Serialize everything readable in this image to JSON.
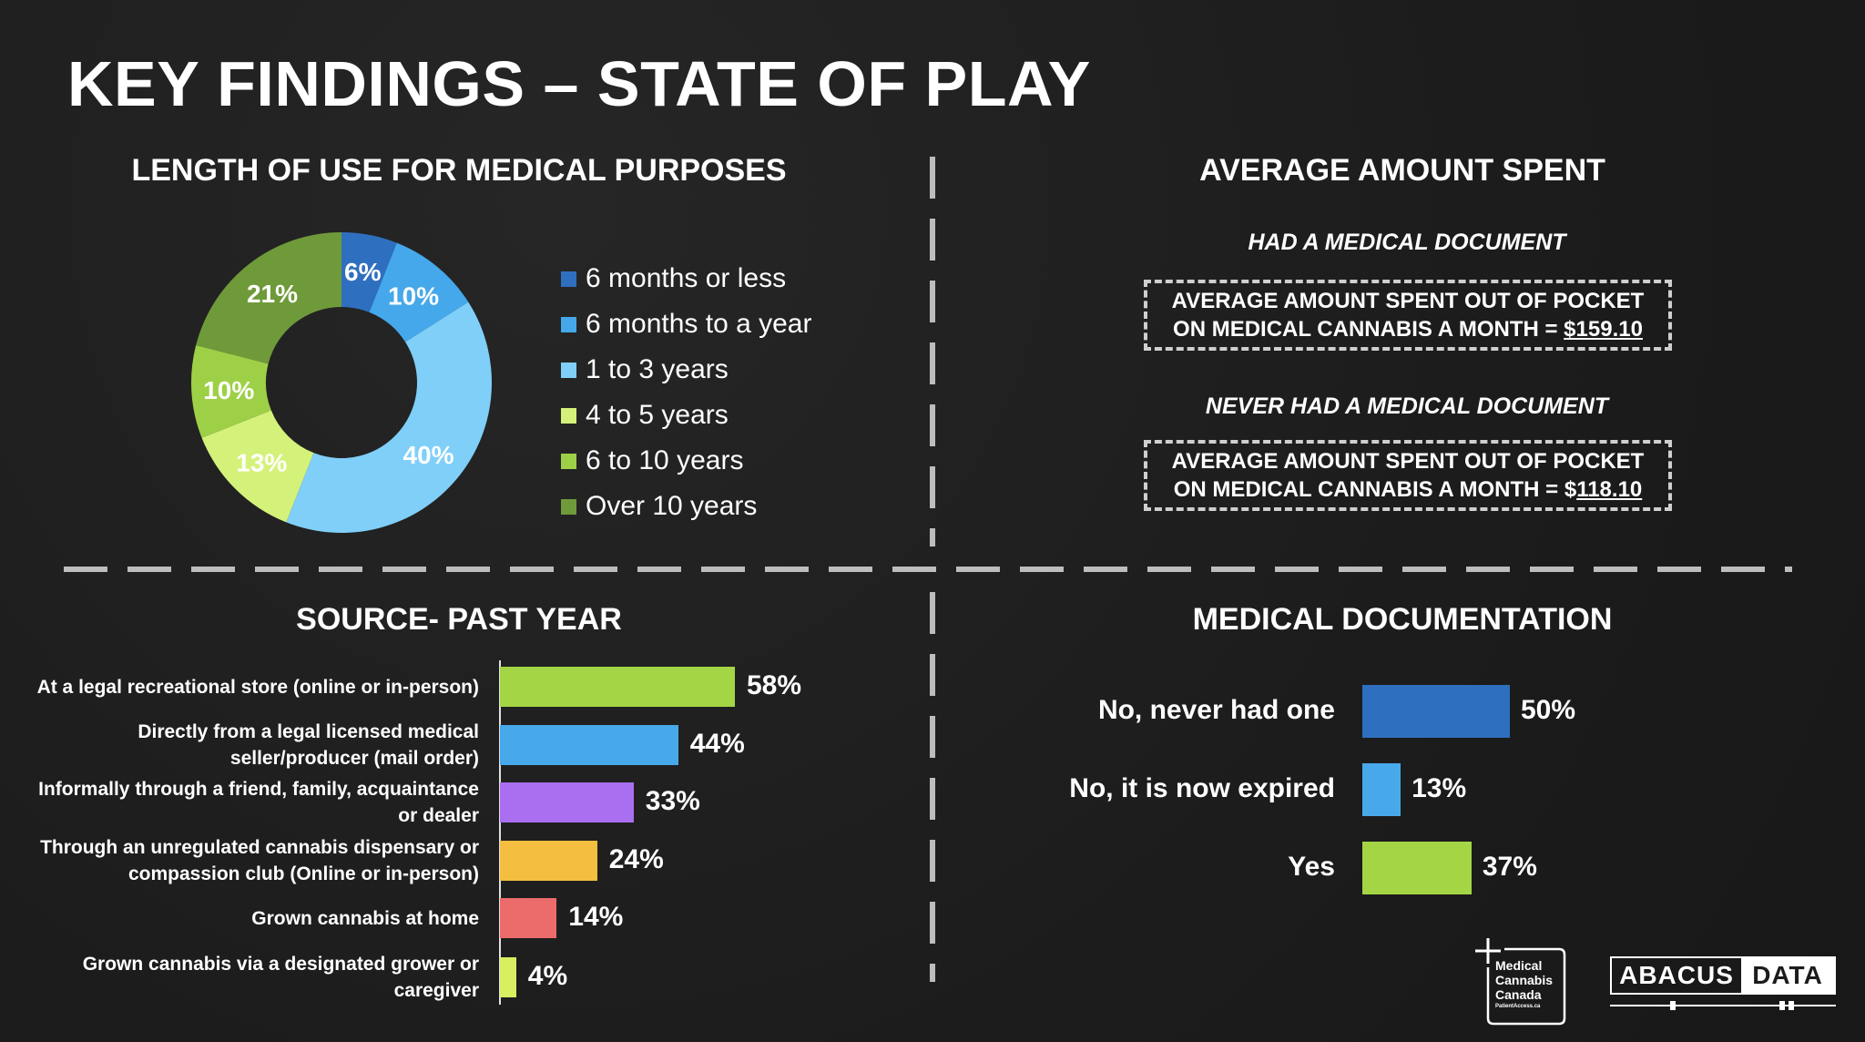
{
  "title": "KEY FINDINGS – STATE OF PLAY",
  "chart_data": [
    {
      "type": "pie",
      "donut": true,
      "title": "LENGTH OF USE FOR MEDICAL PURPOSES",
      "categories": [
        "6 months or less",
        "6 months to a year",
        "1 to 3 years",
        "4 to 5 years",
        "6 to 10 years",
        "Over 10 years"
      ],
      "values": [
        6,
        10,
        40,
        13,
        10,
        21
      ],
      "data_labels": [
        "6%",
        "10%",
        "40%",
        "13%",
        "10%",
        "21%"
      ],
      "colors": [
        "#2f6fbf",
        "#45a8ea",
        "#7fcff8",
        "#d4f27a",
        "#9ed047",
        "#6f9a3a"
      ],
      "legend_position": "right"
    },
    {
      "type": "bar",
      "orientation": "horizontal",
      "title": "SOURCE- PAST YEAR",
      "categories": [
        "At a legal recreational store (online or in-person)",
        "Directly from a legal licensed medical seller/producer (mail order)",
        "Informally through a friend, family, acquaintance or dealer",
        "Through an unregulated cannabis dispensary or compassion club (Online or in-person)",
        "Grown cannabis at home",
        "Grown cannabis via a designated grower or caregiver"
      ],
      "category_lines": [
        [
          "At a legal recreational store (online or in-person)"
        ],
        [
          "Directly from a legal licensed medical",
          "seller/producer (mail order)"
        ],
        [
          "Informally through a friend, family, acquaintance",
          "or dealer"
        ],
        [
          "Through an unregulated cannabis dispensary or",
          "compassion club (Online or in-person)"
        ],
        [
          "Grown cannabis at home"
        ],
        [
          "Grown cannabis via a designated grower or",
          "caregiver"
        ]
      ],
      "values": [
        58,
        44,
        33,
        24,
        14,
        4
      ],
      "data_labels": [
        "58%",
        "44%",
        "33%",
        "24%",
        "14%",
        "4%"
      ],
      "colors": [
        "#a4d545",
        "#48a9ea",
        "#a96ff0",
        "#f4bf40",
        "#ec6b6b",
        "#d8ef60"
      ]
    },
    {
      "type": "bar",
      "orientation": "horizontal",
      "title": "MEDICAL DOCUMENTATION",
      "categories": [
        "No, never had one",
        "No, it is now expired",
        "Yes"
      ],
      "values": [
        50,
        13,
        37
      ],
      "data_labels": [
        "50%",
        "13%",
        "37%"
      ],
      "colors": [
        "#2f6fbf",
        "#48a9ea",
        "#a4d545"
      ]
    }
  ],
  "spend": {
    "title": "AVERAGE AMOUNT SPENT",
    "groups": [
      {
        "heading": "HAD A MEDICAL DOCUMENT",
        "line1": "AVERAGE AMOUNT SPENT OUT OF POCKET",
        "line2": "ON MEDICAL CANNABIS A MONTH = ",
        "value": "$159.10"
      },
      {
        "heading": "NEVER HAD A MEDICAL DOCUMENT",
        "line1": "AVERAGE AMOUNT SPENT OUT OF POCKET",
        "line2": "ON MEDICAL CANNABIS A MONTH = $",
        "value": "118.10"
      }
    ]
  },
  "logos": {
    "mcc": [
      "Medical",
      "Cannabis",
      "Canada",
      "PatientAccess.ca"
    ],
    "abacus_left": "ABACUS",
    "abacus_right": "DATA"
  }
}
